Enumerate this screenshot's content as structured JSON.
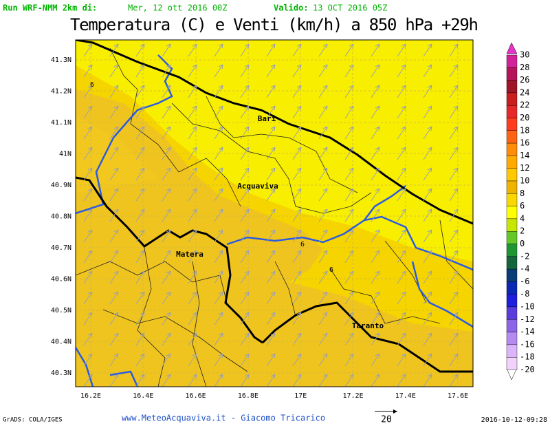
{
  "header": {
    "run_label": "Run WRF-NMM 2km di:",
    "run_date": "Mer, 12 ott 2016 00Z",
    "valid_label": "Valido:",
    "valid_date": "13 OCT 2016 05Z"
  },
  "title": "Temperatura (C) e Venti (km/h) a 850 hPa +29h",
  "latitude_labels": [
    "41.3N",
    "41.2N",
    "41.1N",
    "41N",
    "40.9N",
    "40.8N",
    "40.7N",
    "40.6N",
    "40.5N",
    "40.4N",
    "40.3N"
  ],
  "longitude_labels": [
    "16.2E",
    "16.4E",
    "16.6E",
    "16.8E",
    "17E",
    "17.2E",
    "17.4E",
    "17.6E"
  ],
  "colorbar": {
    "labels": [
      "30",
      "28",
      "26",
      "24",
      "22",
      "20",
      "18",
      "16",
      "14",
      "12",
      "10",
      "8",
      "6",
      "4",
      "2",
      "0",
      "-2",
      "-4",
      "-6",
      "-8",
      "-10",
      "-12",
      "-14",
      "-16",
      "-18",
      "-20"
    ],
    "colors": [
      "#e634c8",
      "#d2229a",
      "#b4145a",
      "#a01428",
      "#c81e1e",
      "#e62828",
      "#ff3c1e",
      "#ff6414",
      "#ff8c0a",
      "#ffaa00",
      "#ffc800",
      "#eeb400",
      "#f8d800",
      "#ffff00",
      "#c8e600",
      "#64c828",
      "#1e9632",
      "#14643c",
      "#0a3c78",
      "#0a28b4",
      "#1e1edc",
      "#5a3cdc",
      "#8c64e6",
      "#b48cf0",
      "#dcb4fa",
      "#f0d2fa"
    ]
  },
  "cities": [
    "Bari",
    "Acquaviva",
    "Matera",
    "Taranto"
  ],
  "contour_labels": [
    "6",
    "6",
    "6"
  ],
  "footer": {
    "software": "GrADS: COLA/IGES",
    "credit": "www.MeteoAcquaviva.it - Giacomo Tricarico",
    "wind_reference": "20",
    "timestamp": "2016-10-12-09:28"
  }
}
